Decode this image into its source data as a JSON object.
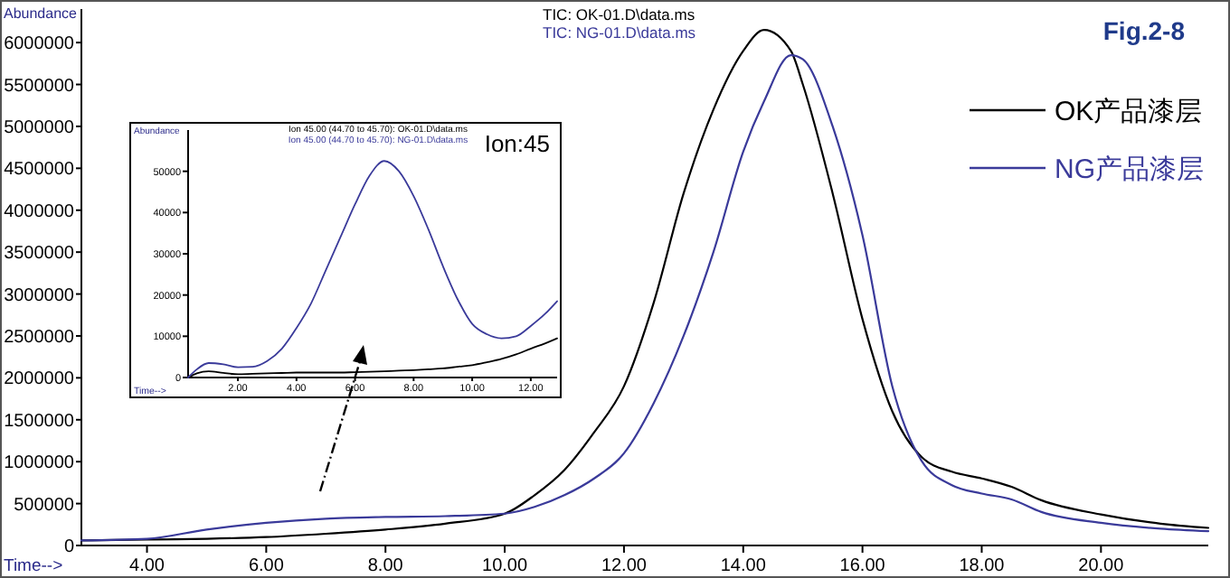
{
  "chart_data": [
    {
      "type": "line",
      "title": "Fig.2-8",
      "xlabel": "Time-->",
      "ylabel": "Abundance",
      "legend": "right",
      "grid": false,
      "annotations": [
        "TIC: OK-01.D\\data.ms",
        "TIC: NG-01.D\\data.ms"
      ],
      "xlim": [
        2.9,
        21.8
      ],
      "ylim": [
        0,
        6400000
      ],
      "xticks": [
        {
          "value": 4,
          "label": "4.00"
        },
        {
          "value": 6,
          "label": "6.00"
        },
        {
          "value": 8,
          "label": "8.00"
        },
        {
          "value": 10,
          "label": "10.00"
        },
        {
          "value": 12,
          "label": "12.00"
        },
        {
          "value": 14,
          "label": "14.00"
        },
        {
          "value": 16,
          "label": "16.00"
        },
        {
          "value": 18,
          "label": "18.00"
        },
        {
          "value": 20,
          "label": "20.00"
        }
      ],
      "yticks": [
        0,
        500000,
        1000000,
        1500000,
        2000000,
        2500000,
        3000000,
        3500000,
        4000000,
        4500000,
        5000000,
        5500000,
        6000000
      ],
      "x": [
        2.9,
        4,
        5,
        6,
        7,
        8,
        9,
        10,
        10.5,
        11,
        11.5,
        12,
        12.5,
        13,
        13.5,
        14,
        14.35,
        14.8,
        15,
        15.5,
        16,
        16.5,
        17,
        17.5,
        18,
        18.5,
        19,
        20,
        21,
        21.8
      ],
      "series": [
        {
          "name": "OK产品漆层",
          "color": "#000000",
          "values": [
            60000,
            70000,
            80000,
            100000,
            140000,
            190000,
            260000,
            380000,
            600000,
            900000,
            1350000,
            1900000,
            2900000,
            4200000,
            5200000,
            5900000,
            6150000,
            5900000,
            5500000,
            4200000,
            2700000,
            1600000,
            1050000,
            880000,
            800000,
            700000,
            540000,
            370000,
            260000,
            210000
          ]
        },
        {
          "name": "NG产品漆层",
          "color": "#3a3a9a",
          "values": [
            60000,
            80000,
            190000,
            270000,
            320000,
            340000,
            350000,
            380000,
            460000,
            600000,
            800000,
            1100000,
            1700000,
            2500000,
            3500000,
            4700000,
            5300000,
            5850000,
            5800000,
            5000000,
            3700000,
            1900000,
            1000000,
            720000,
            620000,
            550000,
            400000,
            270000,
            200000,
            170000
          ]
        }
      ]
    },
    {
      "type": "line",
      "xlabel": "Time-->",
      "ylabel": "Abundance",
      "legend": "top",
      "grid": false,
      "annotations": [
        "Ion:45"
      ],
      "xlim": [
        0.3,
        12.9
      ],
      "ylim": [
        0,
        60000
      ],
      "xticks": [
        {
          "value": 2,
          "label": "2.00"
        },
        {
          "value": 4,
          "label": "4.00"
        },
        {
          "value": 6,
          "label": "6.00"
        },
        {
          "value": 8,
          "label": "8.00"
        },
        {
          "value": 10,
          "label": "10.00"
        },
        {
          "value": 12,
          "label": "12.00"
        }
      ],
      "yticks": [
        0,
        10000,
        20000,
        30000,
        40000,
        50000
      ],
      "x": [
        0.3,
        0.6,
        1,
        1.5,
        2,
        2.5,
        3,
        3.5,
        4,
        4.5,
        5,
        5.5,
        6,
        6.5,
        7,
        7.5,
        8,
        8.5,
        9,
        9.5,
        10,
        10.5,
        11,
        11.5,
        12,
        12.5,
        12.9
      ],
      "series": [
        {
          "name": "Ion  45.00 (44.70 to 45.70): OK-01.D\\data.ms",
          "color": "#000000",
          "values": [
            0,
            1000,
            1500,
            1100,
            800,
            900,
            1000,
            1100,
            1200,
            1200,
            1200,
            1200,
            1300,
            1400,
            1500,
            1650,
            1800,
            2000,
            2200,
            2600,
            3000,
            3700,
            4500,
            5600,
            7000,
            8300,
            9500
          ]
        },
        {
          "name": "Ion  45.00 (44.70 to 45.70): NG-01.D\\data.ms",
          "color": "#3a3a9a",
          "values": [
            0,
            2000,
            3500,
            3200,
            2500,
            2600,
            4000,
            7000,
            12000,
            18000,
            26000,
            34000,
            42000,
            49000,
            52500,
            50000,
            44000,
            36000,
            27000,
            19000,
            13000,
            10500,
            9500,
            10000,
            12500,
            15500,
            18500
          ]
        }
      ]
    }
  ]
}
